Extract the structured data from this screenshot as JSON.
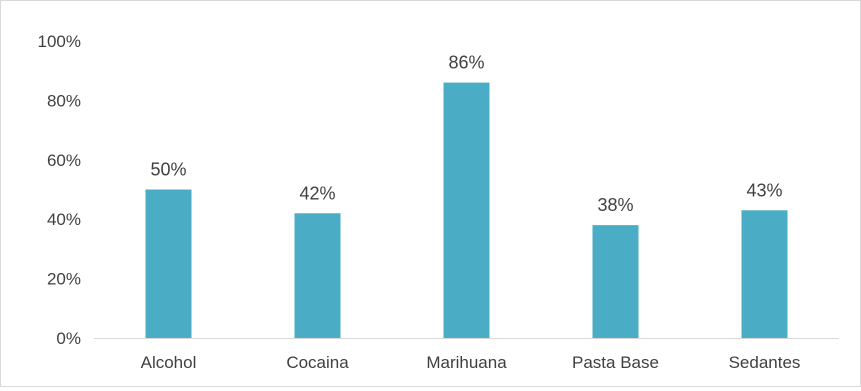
{
  "chart_data": {
    "type": "bar",
    "title": "",
    "xlabel": "",
    "ylabel": "",
    "categories": [
      "Alcohol",
      "Cocaina",
      "Marihuana",
      "Pasta Base",
      "Sedantes"
    ],
    "values": [
      50,
      42,
      86,
      38,
      43
    ],
    "data_labels": [
      "50%",
      "42%",
      "86%",
      "38%",
      "43%"
    ],
    "ylim": [
      0,
      100
    ],
    "y_ticks": [
      0,
      20,
      40,
      60,
      80,
      100
    ],
    "y_tick_labels": [
      "0%",
      "20%",
      "40%",
      "60%",
      "80%",
      "100%"
    ],
    "grid": false,
    "legend": "none",
    "bar_color": "#4BACC6",
    "axis_color": "#d9d9d9",
    "text_color": "#404040"
  }
}
